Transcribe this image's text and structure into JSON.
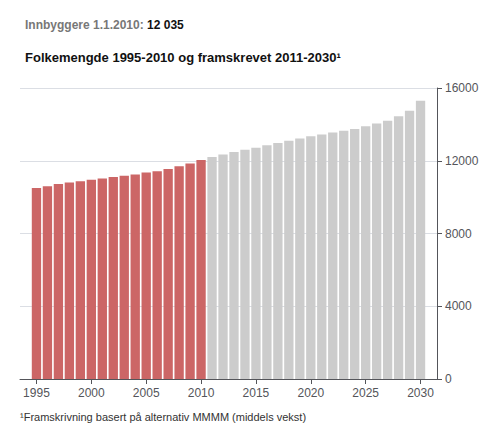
{
  "chart_data": {
    "type": "bar",
    "title": "Folkemengde 1995-2010 og framskrevet 2011-2030¹",
    "subtitle": [
      "Innbyggere 1.1.2010: ",
      "12 035"
    ],
    "annotations": [
      "¹Framskrivning basert på alternativ MMMM (middels vekst)"
    ],
    "series": [
      {
        "color": "#cc6666",
        "x": [
          1995,
          1996,
          1997,
          1998,
          1999,
          2000,
          2001,
          2002,
          2003,
          2004,
          2005,
          2006,
          2007,
          2008,
          2009,
          2010
        ],
        "values": [
          10500,
          10600,
          10720,
          10800,
          10870,
          10950,
          11020,
          11100,
          11180,
          11250,
          11350,
          11420,
          11550,
          11700,
          11850,
          12035
        ]
      },
      {
        "color": "#cccccc",
        "x": [
          2011,
          2012,
          2013,
          2014,
          2015,
          2016,
          2017,
          2018,
          2019,
          2020,
          2021,
          2022,
          2023,
          2024,
          2025,
          2026,
          2027,
          2028,
          2029,
          2030
        ],
        "values": [
          12200,
          12350,
          12480,
          12600,
          12720,
          12850,
          12980,
          13100,
          13220,
          13350,
          13450,
          13550,
          13650,
          13750,
          13900,
          14050,
          14200,
          14450,
          14750,
          15300
        ]
      }
    ],
    "xlim": [
      1993.5,
      2031.5
    ],
    "xticks": [
      1995,
      2000,
      2005,
      2010,
      2015,
      2020,
      2025,
      2030
    ],
    "ylim": [
      0,
      16000
    ],
    "yticks": [
      0,
      4000,
      8000,
      12000,
      16000
    ],
    "grid": true
  }
}
